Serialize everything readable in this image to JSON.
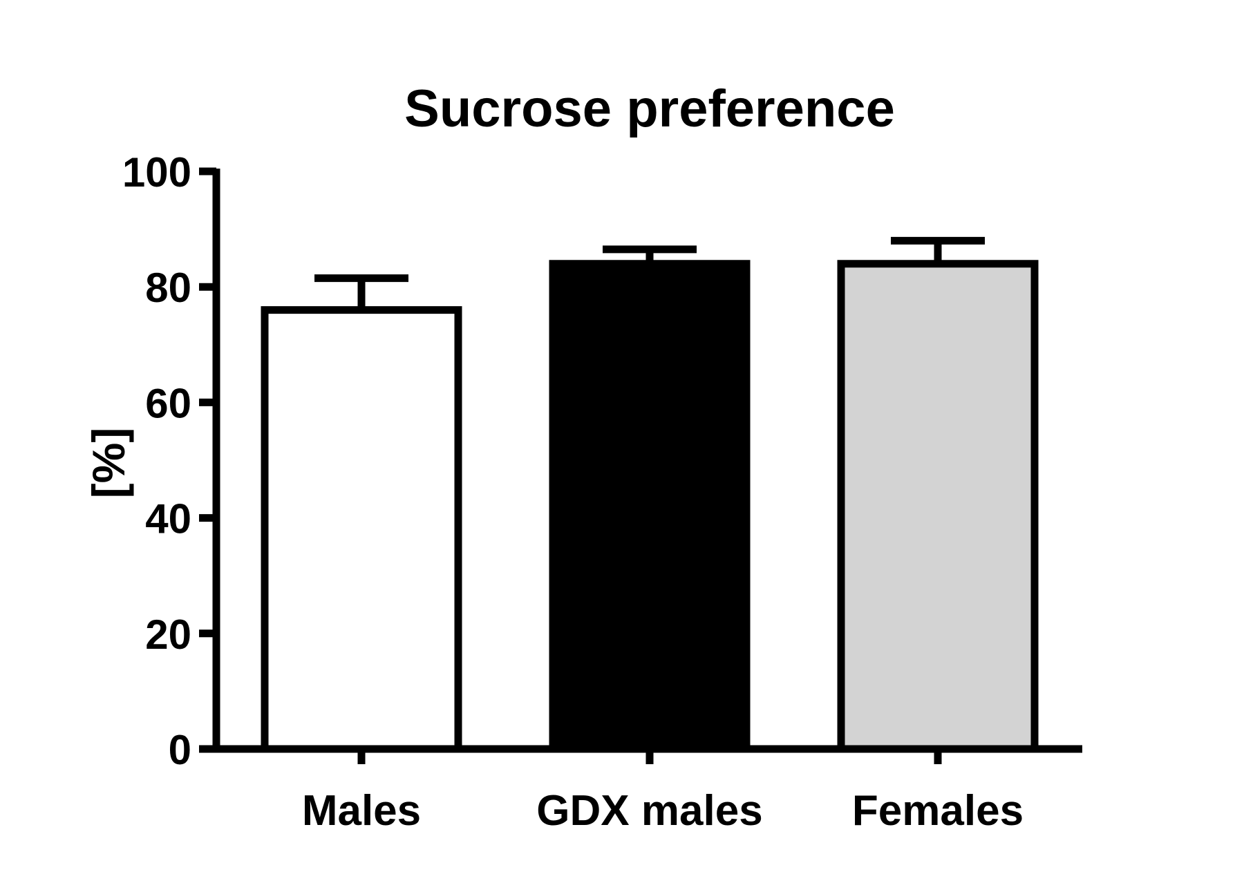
{
  "chart_data": {
    "type": "bar",
    "title": "Sucrose preference",
    "xlabel": "",
    "ylabel": "[%]",
    "ylim": [
      0,
      100
    ],
    "yticks": [
      0,
      20,
      40,
      60,
      80,
      100
    ],
    "categories": [
      "Males",
      "GDX males",
      "Females"
    ],
    "values": [
      76,
      84,
      84
    ],
    "error_upper": [
      5.5,
      2.5,
      4
    ],
    "bar_fill_colors": [
      "#ffffff",
      "#000000",
      "#d3d3d3"
    ],
    "bar_edge_color": "#000000",
    "grid": false,
    "legend": false
  }
}
